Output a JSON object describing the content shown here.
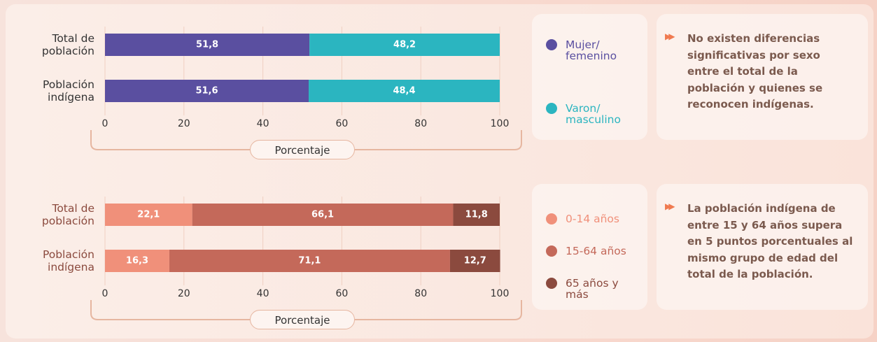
{
  "chart_data": [
    {
      "type": "bar",
      "orientation": "horizontal",
      "stacked": true,
      "categories": [
        "Total de población",
        "Población indígena"
      ],
      "series": [
        {
          "name": "Mujer/ femenino",
          "color": "#5a4fa0",
          "values": [
            51.8,
            51.6
          ],
          "value_labels": [
            "51,8",
            "51,6"
          ]
        },
        {
          "name": "Varon/ masculino",
          "color": "#2bb5c0",
          "values": [
            48.2,
            48.4
          ],
          "value_labels": [
            "48,2",
            "48,4"
          ]
        }
      ],
      "xlim": [
        0,
        100
      ],
      "xticks": [
        0,
        20,
        40,
        60,
        80,
        100
      ],
      "grid": true,
      "xlabel": "Porcentaje",
      "annotation": "No existen diferencias significativas por sexo entre el total de la población y quienes se reconocen indígenas."
    },
    {
      "type": "bar",
      "orientation": "horizontal",
      "stacked": true,
      "categories": [
        "Total de población",
        "Población indígena"
      ],
      "series": [
        {
          "name": "0-14 años",
          "color": "#f0907a",
          "values": [
            22.1,
            16.3
          ],
          "value_labels": [
            "22,1",
            "16,3"
          ]
        },
        {
          "name": "15-64 años",
          "color": "#c4695a",
          "values": [
            66.1,
            71.1
          ],
          "value_labels": [
            "66,1",
            "71,1"
          ]
        },
        {
          "name": "65 años y más",
          "color": "#8b4a3e",
          "values": [
            11.8,
            12.7
          ],
          "value_labels": [
            "11,8",
            "12,7"
          ]
        }
      ],
      "xlim": [
        0,
        100
      ],
      "xticks": [
        0,
        20,
        40,
        60,
        80,
        100
      ],
      "grid": true,
      "xlabel": "Porcentaje",
      "annotation": "La población indígena de entre 15 y 64 años supera en 5 puntos porcentuales al mismo grupo de edad del total de la población."
    }
  ]
}
